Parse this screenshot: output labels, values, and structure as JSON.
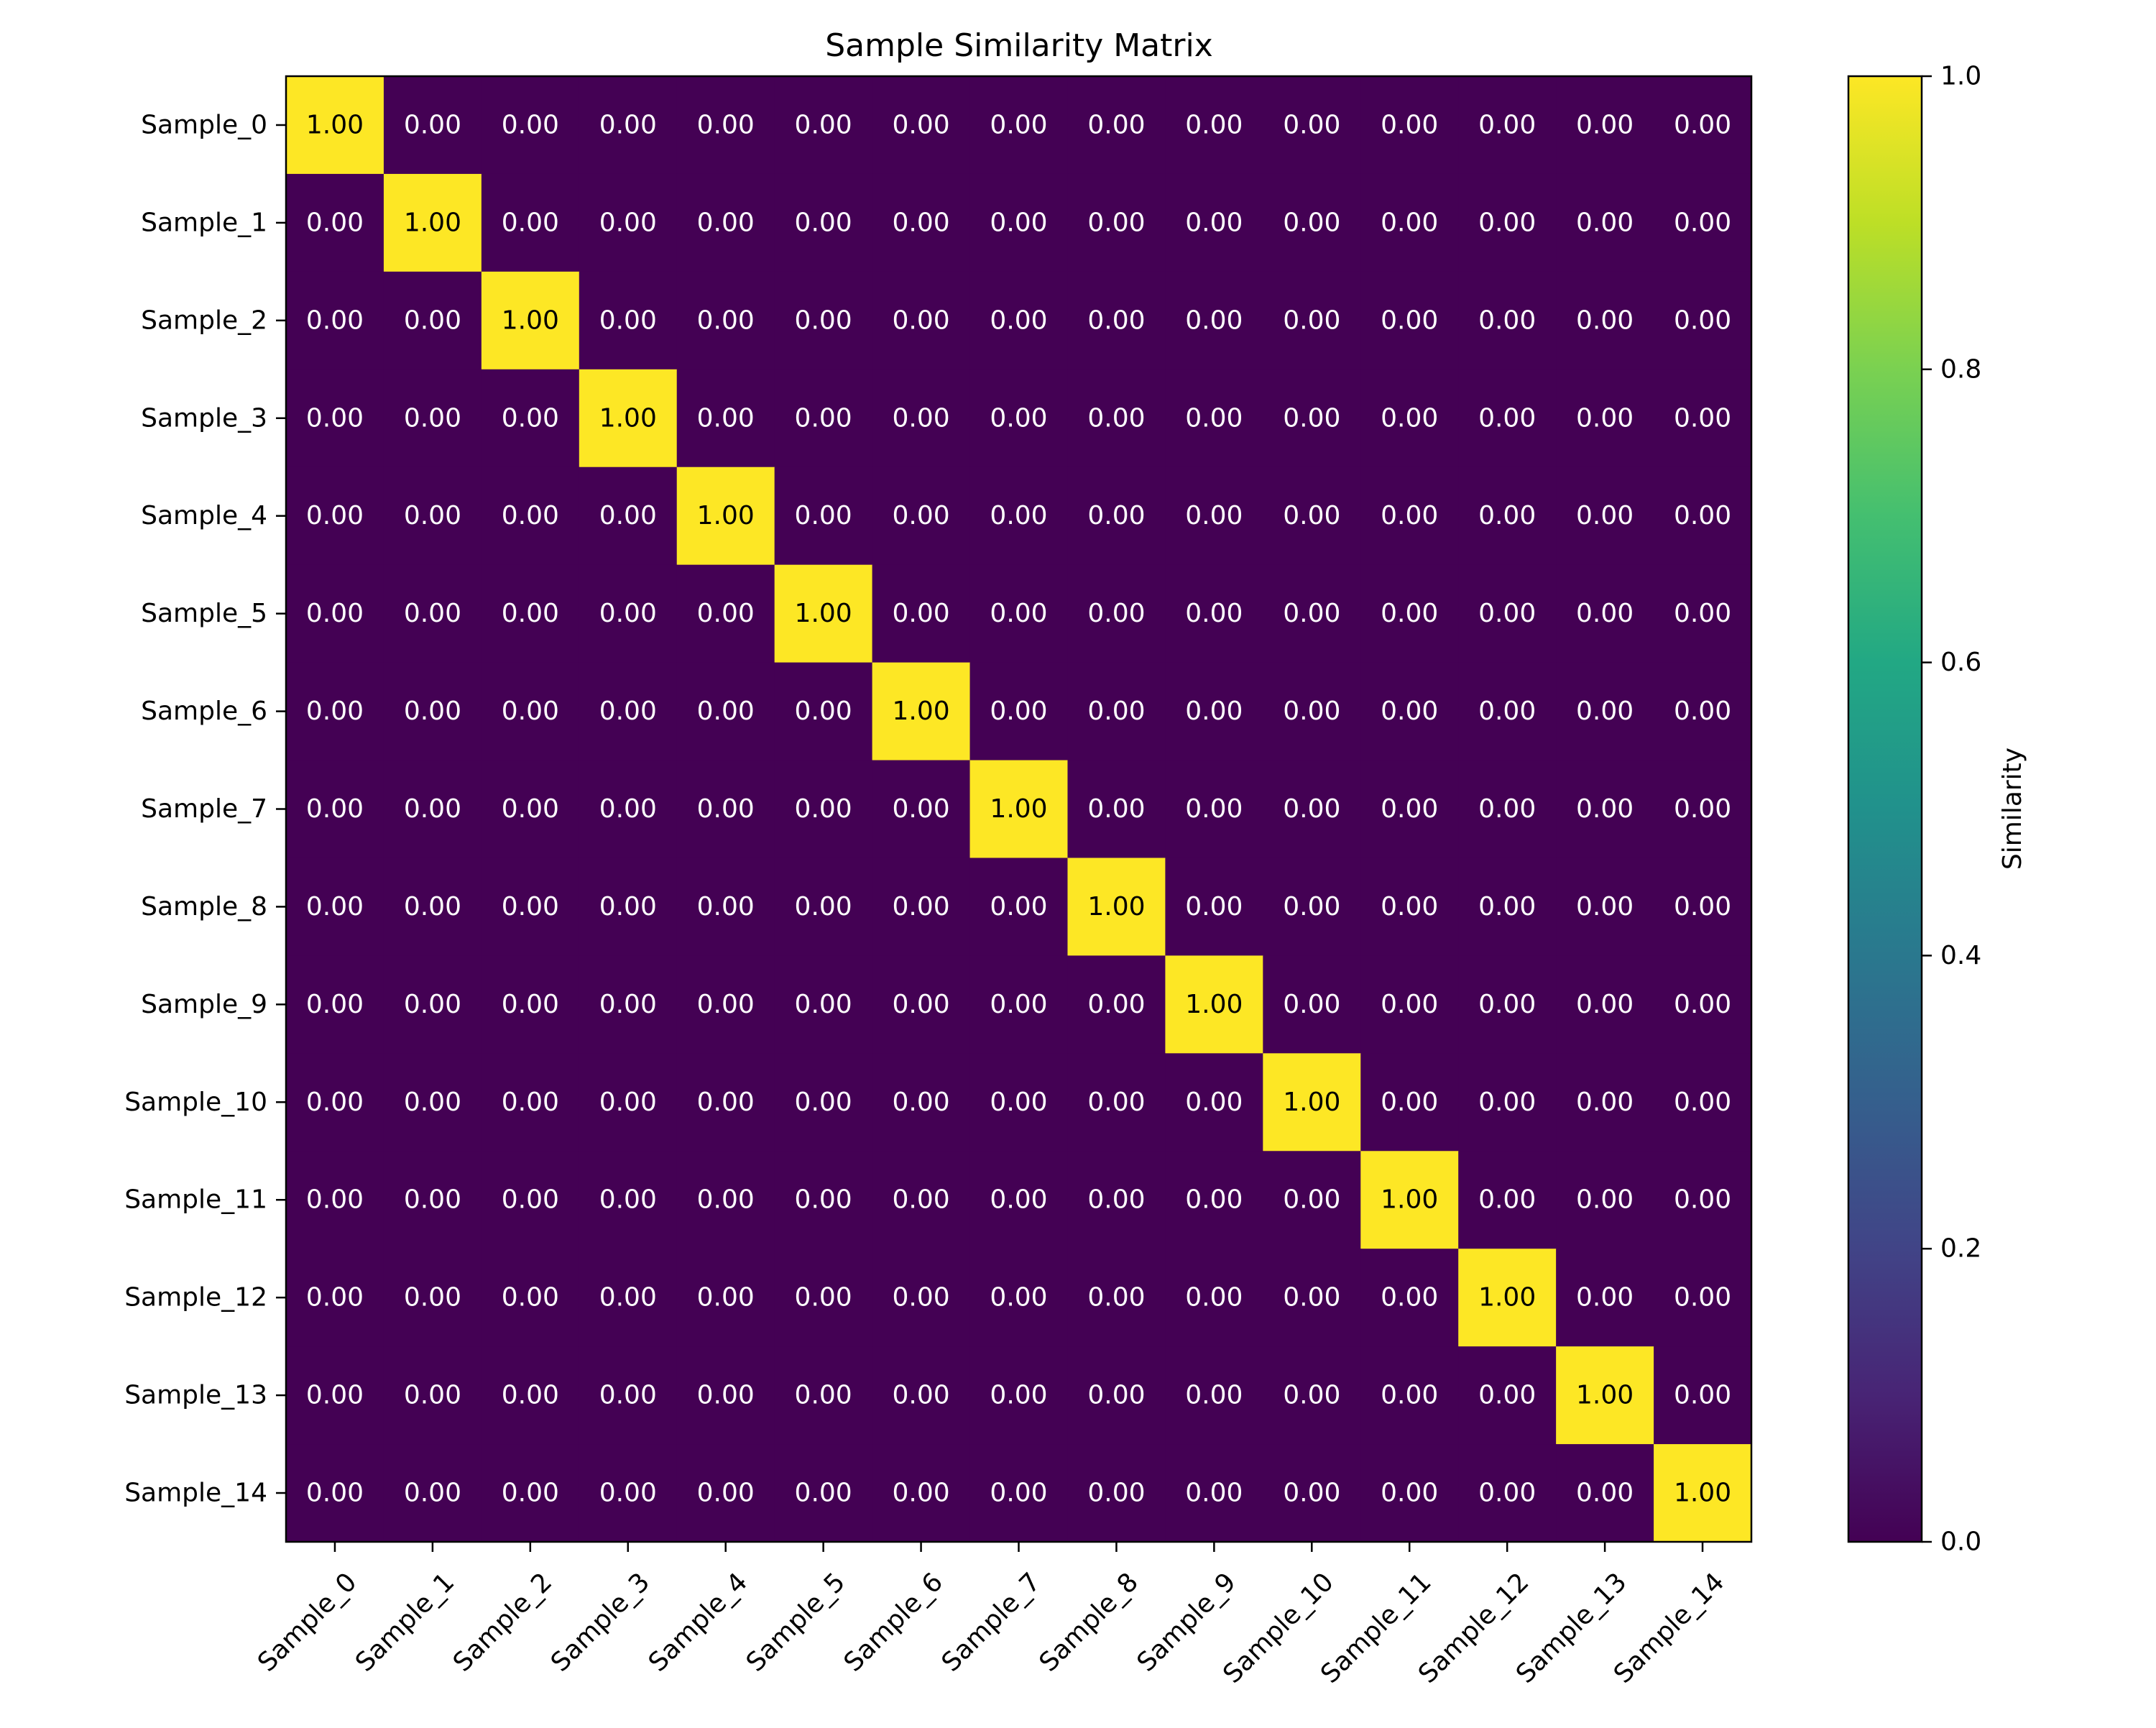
{
  "chart_data": {
    "type": "heatmap",
    "title": "Sample Similarity Matrix",
    "xlabel": "",
    "ylabel": "",
    "x_categories": [
      "Sample_0",
      "Sample_1",
      "Sample_2",
      "Sample_3",
      "Sample_4",
      "Sample_5",
      "Sample_6",
      "Sample_7",
      "Sample_8",
      "Sample_9",
      "Sample_10",
      "Sample_11",
      "Sample_12",
      "Sample_13",
      "Sample_14"
    ],
    "y_categories": [
      "Sample_0",
      "Sample_1",
      "Sample_2",
      "Sample_3",
      "Sample_4",
      "Sample_5",
      "Sample_6",
      "Sample_7",
      "Sample_8",
      "Sample_9",
      "Sample_10",
      "Sample_11",
      "Sample_12",
      "Sample_13",
      "Sample_14"
    ],
    "values": [
      [
        1,
        0,
        0,
        0,
        0,
        0,
        0,
        0,
        0,
        0,
        0,
        0,
        0,
        0,
        0
      ],
      [
        0,
        1,
        0,
        0,
        0,
        0,
        0,
        0,
        0,
        0,
        0,
        0,
        0,
        0,
        0
      ],
      [
        0,
        0,
        1,
        0,
        0,
        0,
        0,
        0,
        0,
        0,
        0,
        0,
        0,
        0,
        0
      ],
      [
        0,
        0,
        0,
        1,
        0,
        0,
        0,
        0,
        0,
        0,
        0,
        0,
        0,
        0,
        0
      ],
      [
        0,
        0,
        0,
        0,
        1,
        0,
        0,
        0,
        0,
        0,
        0,
        0,
        0,
        0,
        0
      ],
      [
        0,
        0,
        0,
        0,
        0,
        1,
        0,
        0,
        0,
        0,
        0,
        0,
        0,
        0,
        0
      ],
      [
        0,
        0,
        0,
        0,
        0,
        0,
        1,
        0,
        0,
        0,
        0,
        0,
        0,
        0,
        0
      ],
      [
        0,
        0,
        0,
        0,
        0,
        0,
        0,
        1,
        0,
        0,
        0,
        0,
        0,
        0,
        0
      ],
      [
        0,
        0,
        0,
        0,
        0,
        0,
        0,
        0,
        1,
        0,
        0,
        0,
        0,
        0,
        0
      ],
      [
        0,
        0,
        0,
        0,
        0,
        0,
        0,
        0,
        0,
        1,
        0,
        0,
        0,
        0,
        0
      ],
      [
        0,
        0,
        0,
        0,
        0,
        0,
        0,
        0,
        0,
        0,
        1,
        0,
        0,
        0,
        0
      ],
      [
        0,
        0,
        0,
        0,
        0,
        0,
        0,
        0,
        0,
        0,
        0,
        1,
        0,
        0,
        0
      ],
      [
        0,
        0,
        0,
        0,
        0,
        0,
        0,
        0,
        0,
        0,
        0,
        0,
        1,
        0,
        0
      ],
      [
        0,
        0,
        0,
        0,
        0,
        0,
        0,
        0,
        0,
        0,
        0,
        0,
        0,
        1,
        0
      ],
      [
        0,
        0,
        0,
        0,
        0,
        0,
        0,
        0,
        0,
        0,
        0,
        0,
        0,
        0,
        1
      ]
    ],
    "value_format": "2-decimals",
    "vmin": 0,
    "vmax": 1,
    "colormap": "viridis",
    "colorbar": {
      "label": "Similarity",
      "ticks": [
        0,
        0.2,
        0.4,
        0.6,
        0.8,
        1
      ],
      "tick_labels": [
        "0.0",
        "0.2",
        "0.4",
        "0.6",
        "0.8",
        "1.0"
      ]
    },
    "colors": {
      "low": "#440154",
      "high": "#fde725",
      "text_on_low": "#ffffff",
      "text_on_high": "#000000"
    }
  }
}
